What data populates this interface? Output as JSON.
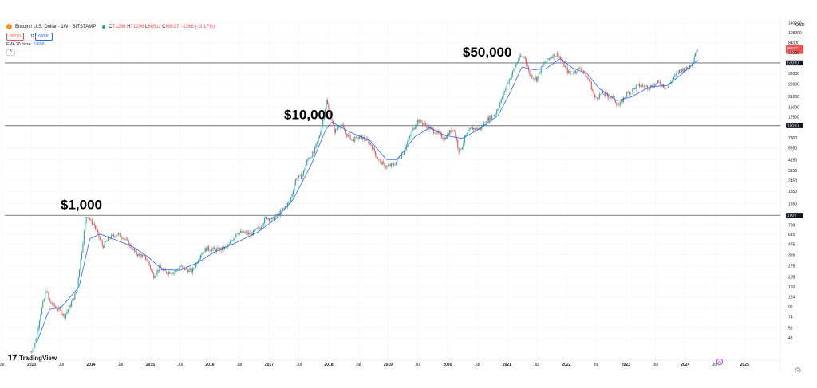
{
  "header": {
    "symbol_title": "Bitcoin / U.S. Dollar · 1W · BITSTAMP",
    "ohlc": {
      "o": "71296",
      "h": "71296",
      "l": "64511",
      "c": "69027",
      "change": "−2268 (−3.17%)"
    },
    "sell_price": "69019",
    "spread": "11",
    "buy_price": "69030",
    "ema_label": "EMA 20 close",
    "ema_value": "53658",
    "collapse": "^"
  },
  "logo": {
    "text": "TradingView"
  },
  "currency": "USD",
  "colors": {
    "up": "#26a69a",
    "down": "#ef5350",
    "ema": "#2962ff",
    "level_line": "#9598a1",
    "last_price": "#ef5350"
  },
  "chart_data": {
    "type": "candlestick",
    "scale": "log",
    "interval": "1W",
    "y_range": [
      30,
      160000
    ],
    "y_ticks": [
      140000,
      108000,
      84000,
      65000,
      50000,
      38000,
      29000,
      21000,
      16000,
      12500,
      10000,
      7300,
      5650,
      4150,
      3150,
      2450,
      1850,
      1350,
      1000,
      780,
      615,
      475,
      365,
      275,
      205,
      160,
      124,
      96,
      74,
      56,
      43
    ],
    "x_ticks": [
      "Jul",
      "2013",
      "Jul",
      "2014",
      "Jul",
      "2015",
      "Jul",
      "2016",
      "Jul",
      "2017",
      "Jul",
      "2018",
      "Jul",
      "2019",
      "Jul",
      "2020",
      "Jul",
      "2021",
      "Jul",
      "2022",
      "Jul",
      "2023",
      "Jul",
      "2024",
      "Jul",
      "2025"
    ],
    "x_range": [
      2012.55,
      2025.6
    ],
    "price_path": [
      [
        2012.98,
        30
      ],
      [
        2013.05,
        35
      ],
      [
        2013.15,
        80
      ],
      [
        2013.25,
        150
      ],
      [
        2013.3,
        110
      ],
      [
        2013.4,
        95
      ],
      [
        2013.5,
        85
      ],
      [
        2013.55,
        75
      ],
      [
        2013.65,
        100
      ],
      [
        2013.75,
        140
      ],
      [
        2013.82,
        300
      ],
      [
        2013.9,
        800
      ],
      [
        2013.93,
        1050
      ],
      [
        2014.0,
        850
      ],
      [
        2014.05,
        800
      ],
      [
        2014.12,
        600
      ],
      [
        2014.2,
        450
      ],
      [
        2014.3,
        560
      ],
      [
        2014.45,
        620
      ],
      [
        2014.55,
        570
      ],
      [
        2014.65,
        470
      ],
      [
        2014.75,
        380
      ],
      [
        2014.85,
        360
      ],
      [
        2014.95,
        320
      ],
      [
        2015.05,
        210
      ],
      [
        2015.15,
        260
      ],
      [
        2015.25,
        235
      ],
      [
        2015.4,
        235
      ],
      [
        2015.5,
        270
      ],
      [
        2015.6,
        250
      ],
      [
        2015.7,
        235
      ],
      [
        2015.85,
        380
      ],
      [
        2015.95,
        430
      ],
      [
        2016.1,
        410
      ],
      [
        2016.3,
        440
      ],
      [
        2016.45,
        650
      ],
      [
        2016.55,
        640
      ],
      [
        2016.7,
        620
      ],
      [
        2016.85,
        750
      ],
      [
        2016.95,
        960
      ],
      [
        2017.05,
        900
      ],
      [
        2017.2,
        1100
      ],
      [
        2017.35,
        1450
      ],
      [
        2017.45,
        2600
      ],
      [
        2017.55,
        2700
      ],
      [
        2017.65,
        4300
      ],
      [
        2017.75,
        5000
      ],
      [
        2017.85,
        8000
      ],
      [
        2017.93,
        14000
      ],
      [
        2017.96,
        19000
      ],
      [
        2018.02,
        13500
      ],
      [
        2018.1,
        8500
      ],
      [
        2018.2,
        10500
      ],
      [
        2018.3,
        8000
      ],
      [
        2018.4,
        7000
      ],
      [
        2018.55,
        7400
      ],
      [
        2018.7,
        6400
      ],
      [
        2018.85,
        4000
      ],
      [
        2018.96,
        3500
      ],
      [
        2019.1,
        3700
      ],
      [
        2019.25,
        5000
      ],
      [
        2019.4,
        8500
      ],
      [
        2019.5,
        11500
      ],
      [
        2019.6,
        10500
      ],
      [
        2019.7,
        9300
      ],
      [
        2019.8,
        8500
      ],
      [
        2019.95,
        7200
      ],
      [
        2020.1,
        9500
      ],
      [
        2020.2,
        5000
      ],
      [
        2020.3,
        7500
      ],
      [
        2020.4,
        9300
      ],
      [
        2020.55,
        9200
      ],
      [
        2020.65,
        11500
      ],
      [
        2020.8,
        13500
      ],
      [
        2020.9,
        19000
      ],
      [
        2021.0,
        29000
      ],
      [
        2021.1,
        40000
      ],
      [
        2021.2,
        57000
      ],
      [
        2021.3,
        59000
      ],
      [
        2021.38,
        37000
      ],
      [
        2021.5,
        33000
      ],
      [
        2021.6,
        47000
      ],
      [
        2021.75,
        60000
      ],
      [
        2021.86,
        62000
      ],
      [
        2021.95,
        48000
      ],
      [
        2022.05,
        38000
      ],
      [
        2022.25,
        44000
      ],
      [
        2022.4,
        30000
      ],
      [
        2022.48,
        20000
      ],
      [
        2022.6,
        23000
      ],
      [
        2022.8,
        20000
      ],
      [
        2022.88,
        16500
      ],
      [
        2023.0,
        22000
      ],
      [
        2023.2,
        28000
      ],
      [
        2023.4,
        27000
      ],
      [
        2023.55,
        30000
      ],
      [
        2023.7,
        26500
      ],
      [
        2023.8,
        34000
      ],
      [
        2023.92,
        42000
      ],
      [
        2024.05,
        43000
      ],
      [
        2024.12,
        52000
      ],
      [
        2024.18,
        68000
      ],
      [
        2024.22,
        71000
      ]
    ],
    "ema_path": [
      [
        2013.1,
        40
      ],
      [
        2013.3,
        90
      ],
      [
        2013.5,
        95
      ],
      [
        2013.8,
        160
      ],
      [
        2013.98,
        550
      ],
      [
        2014.15,
        620
      ],
      [
        2014.4,
        540
      ],
      [
        2014.7,
        450
      ],
      [
        2014.95,
        350
      ],
      [
        2015.2,
        250
      ],
      [
        2015.5,
        245
      ],
      [
        2015.8,
        300
      ],
      [
        2016.1,
        400
      ],
      [
        2016.45,
        500
      ],
      [
        2016.8,
        650
      ],
      [
        2017.1,
        900
      ],
      [
        2017.4,
        1500
      ],
      [
        2017.7,
        3600
      ],
      [
        2017.95,
        9000
      ],
      [
        2018.05,
        11000
      ],
      [
        2018.35,
        8500
      ],
      [
        2018.7,
        6800
      ],
      [
        2018.97,
        4200
      ],
      [
        2019.15,
        4200
      ],
      [
        2019.45,
        7500
      ],
      [
        2019.7,
        9500
      ],
      [
        2019.95,
        7800
      ],
      [
        2020.25,
        7200
      ],
      [
        2020.55,
        9300
      ],
      [
        2020.85,
        13000
      ],
      [
        2021.05,
        23000
      ],
      [
        2021.25,
        45000
      ],
      [
        2021.45,
        42000
      ],
      [
        2021.65,
        43000
      ],
      [
        2021.9,
        56000
      ],
      [
        2022.1,
        44000
      ],
      [
        2022.35,
        38000
      ],
      [
        2022.55,
        26000
      ],
      [
        2022.85,
        19000
      ],
      [
        2023.1,
        21000
      ],
      [
        2023.4,
        27000
      ],
      [
        2023.7,
        28000
      ],
      [
        2023.95,
        38000
      ],
      [
        2024.15,
        50000
      ],
      [
        2024.22,
        53658
      ]
    ],
    "levels": [
      {
        "price": 1000,
        "label": "$1,000",
        "tag": "1000"
      },
      {
        "price": 10000,
        "label": "$10,000",
        "tag": "10000"
      },
      {
        "price": 50000,
        "label": "$50,000",
        "tag": "50000"
      }
    ],
    "last_price": "69027",
    "last_price_countdown": "2d 3h",
    "event_marker": "⊘"
  }
}
